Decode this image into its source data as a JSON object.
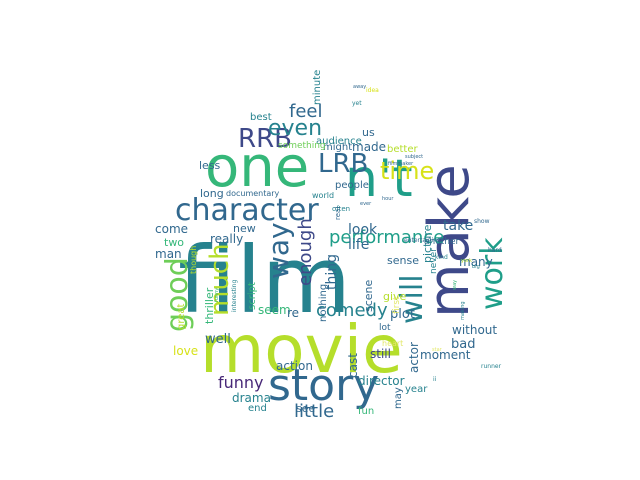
{
  "palette": {
    "yellowgreen": "#b5de2b",
    "green": "#6ece58",
    "teal": "#1f9e89",
    "tealblue": "#26828e",
    "blue": "#31688e",
    "indigo": "#3e4989",
    "purple": "#482878",
    "lime": "#d7e219",
    "paleyellow": "#e3e86b",
    "mint": "#35b779"
  },
  "words": [
    {
      "text": "film",
      "color": "#26828e"
    },
    {
      "text": "movie",
      "color": "#b5de2b"
    },
    {
      "text": "one",
      "color": "#35b779"
    },
    {
      "text": "n't",
      "color": "#1f9e89"
    },
    {
      "text": "make",
      "color": "#3e4989"
    },
    {
      "text": "story",
      "color": "#31688e"
    },
    {
      "text": "character",
      "color": "#31688e"
    },
    {
      "text": "RRB",
      "color": "#3e4989"
    },
    {
      "text": "LRB",
      "color": "#31688e"
    },
    {
      "text": "even",
      "color": "#26828e"
    },
    {
      "text": "time",
      "color": "#d7e219"
    },
    {
      "text": "good",
      "color": "#6ece58"
    },
    {
      "text": "much",
      "color": "#b5de2b"
    },
    {
      "text": "way",
      "color": "#31688e"
    },
    {
      "text": "work",
      "color": "#1f9e89"
    },
    {
      "text": "will",
      "color": "#26828e"
    },
    {
      "text": "performance",
      "color": "#1f9e89"
    },
    {
      "text": "comedy",
      "color": "#26828e"
    },
    {
      "text": "funny",
      "color": "#482878"
    },
    {
      "text": "little",
      "color": "#31688e"
    },
    {
      "text": "feel",
      "color": "#31688e"
    },
    {
      "text": "enough",
      "color": "#3e4989"
    },
    {
      "text": "thing",
      "color": "#31688e"
    },
    {
      "text": "director",
      "color": "#26828e"
    },
    {
      "text": "drama",
      "color": "#26828e"
    },
    {
      "text": "life",
      "color": "#31688e"
    },
    {
      "text": "look",
      "color": "#31688e"
    },
    {
      "text": "take",
      "color": "#31688e"
    },
    {
      "text": "made",
      "color": "#31688e"
    },
    {
      "text": "seem",
      "color": "#35b779"
    },
    {
      "text": "plot",
      "color": "#31688e"
    },
    {
      "text": "bad",
      "color": "#31688e"
    },
    {
      "text": "well",
      "color": "#31688e"
    },
    {
      "text": "love",
      "color": "#d7e219"
    },
    {
      "text": "still",
      "color": "#3e4989"
    },
    {
      "text": "moment",
      "color": "#31688e"
    },
    {
      "text": "people",
      "color": "#31688e"
    },
    {
      "text": "come",
      "color": "#31688e"
    },
    {
      "text": "man",
      "color": "#31688e"
    },
    {
      "text": "two",
      "color": "#35b779"
    },
    {
      "text": "really",
      "color": "#31688e"
    },
    {
      "text": "new",
      "color": "#31688e"
    },
    {
      "text": "long",
      "color": "#31688e"
    },
    {
      "text": "less",
      "color": "#31688e"
    },
    {
      "text": "us",
      "color": "#31688e"
    },
    {
      "text": "best",
      "color": "#26828e"
    },
    {
      "text": "minute",
      "color": "#26828e"
    },
    {
      "text": "might",
      "color": "#31688e"
    },
    {
      "text": "audience",
      "color": "#26828e"
    },
    {
      "text": "something",
      "color": "#6ece58"
    },
    {
      "text": "better",
      "color": "#b5de2b"
    },
    {
      "text": "give",
      "color": "#b5de2b"
    },
    {
      "text": "many",
      "color": "#31688e"
    },
    {
      "text": "without",
      "color": "#31688e"
    },
    {
      "text": "actor",
      "color": "#31688e"
    },
    {
      "text": "scene",
      "color": "#31688e"
    },
    {
      "text": "sense",
      "color": "#31688e"
    },
    {
      "text": "nothing",
      "color": "#31688e"
    },
    {
      "text": "script",
      "color": "#35b779"
    },
    {
      "text": "thriller",
      "color": "#35b779"
    },
    {
      "text": "great",
      "color": "#b5de2b"
    },
    {
      "text": "action",
      "color": "#31688e"
    },
    {
      "text": "re",
      "color": "#31688e"
    },
    {
      "text": "cast",
      "color": "#31688e"
    },
    {
      "text": "see",
      "color": "#31688e"
    },
    {
      "text": "end",
      "color": "#26828e"
    },
    {
      "text": "fun",
      "color": "#35b779"
    },
    {
      "text": "year",
      "color": "#26828e"
    },
    {
      "text": "may",
      "color": "#31688e"
    },
    {
      "text": "picture",
      "color": "#26828e"
    },
    {
      "text": "world",
      "color": "#26828e"
    },
    {
      "text": "documentary",
      "color": "#31688e"
    },
    {
      "text": "another",
      "color": "#31688e"
    },
    {
      "text": "first",
      "color": "#e3e86b"
    },
    {
      "text": "never",
      "color": "#26828e"
    },
    {
      "text": "often",
      "color": "#26828e"
    },
    {
      "text": "real",
      "color": "#31688e"
    },
    {
      "text": "lot",
      "color": "#31688e"
    },
    {
      "text": "heart",
      "color": "#e3e86b"
    },
    {
      "text": "though",
      "color": "#b5de2b"
    },
    {
      "text": "interesting",
      "color": "#26828e"
    },
    {
      "text": "entertaining",
      "color": "#31688e"
    },
    {
      "text": "kind",
      "color": "#26828e"
    },
    {
      "text": "show",
      "color": "#31688e"
    },
    {
      "text": "hard",
      "color": "#31688e"
    },
    {
      "text": "runner",
      "color": "#26828e"
    },
    {
      "text": "ii",
      "color": "#26828e"
    },
    {
      "text": "yet",
      "color": "#26828e"
    },
    {
      "text": "away",
      "color": "#31688e"
    },
    {
      "text": "idea",
      "color": "#d7e219"
    },
    {
      "text": "subject",
      "color": "#31688e"
    },
    {
      "text": "filmmaker",
      "color": "#31688e"
    },
    {
      "text": "way",
      "color": "#35b779"
    },
    {
      "text": "york",
      "color": "#b5de2b"
    },
    {
      "text": "big",
      "color": "#26828e"
    },
    {
      "text": "making",
      "color": "#26828e"
    },
    {
      "text": "hour",
      "color": "#31688e"
    },
    {
      "text": "funny",
      "color": "#35b779"
    },
    {
      "text": "ever",
      "color": "#31688e"
    },
    {
      "text": "star",
      "color": "#e3e86b"
    }
  ]
}
